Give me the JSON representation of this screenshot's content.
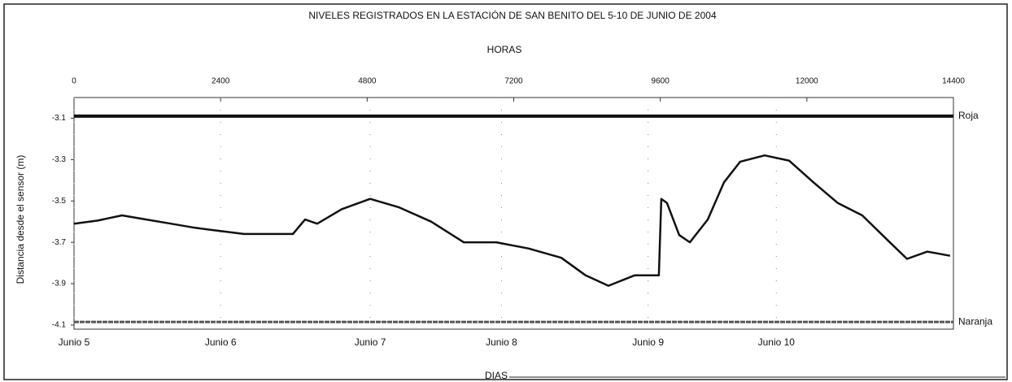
{
  "chart_data": {
    "type": "line",
    "title": "NIVELES REGISTRADOS EN LA ESTACIÓN DE SAN BENITO DEL 5-10 DE JUNIO DE 2004",
    "x_label_top": "HORAS",
    "x_label_bottom": "DIAS",
    "y_label": "Distancia desde el sensor (m)",
    "xlim": [
      0,
      14400
    ],
    "xticks": [
      0,
      2400,
      4800,
      7200,
      9600,
      12000,
      14400
    ],
    "x2ticks": [
      {
        "value": 0,
        "label": "Junio 5"
      },
      {
        "value": 2400,
        "label": "Junio 6"
      },
      {
        "value": 4850,
        "label": "Junio 7"
      },
      {
        "value": 7000,
        "label": "Junio 8"
      },
      {
        "value": 9400,
        "label": "Junio 9"
      },
      {
        "value": 11500,
        "label": "Junio 10"
      }
    ],
    "ylim": [
      -4.12,
      -3.0
    ],
    "yticks": [
      -3.1,
      -3.3,
      -3.5,
      -3.7,
      -3.9,
      -4.1
    ],
    "series": [
      {
        "color": "#111111",
        "x": [
          0,
          386,
          786,
          1186,
          1585,
          1985,
          2384,
          2784,
          3184,
          3583,
          3783,
          3983,
          4383,
          4849,
          5315,
          5848,
          6381,
          6913,
          7446,
          7979,
          8378,
          8751,
          9178,
          9577,
          9617,
          9710,
          9910,
          10084,
          10377,
          10643,
          10909,
          11309,
          11708,
          12108,
          12507,
          12907,
          13307,
          13640,
          13973,
          14346
        ],
        "values": [
          -3.61,
          -3.595,
          -3.57,
          -3.59,
          -3.61,
          -3.63,
          -3.645,
          -3.66,
          -3.66,
          -3.66,
          -3.59,
          -3.61,
          -3.54,
          -3.49,
          -3.53,
          -3.6,
          -3.7,
          -3.7,
          -3.73,
          -3.775,
          -3.86,
          -3.91,
          -3.86,
          -3.86,
          -3.49,
          -3.51,
          -3.665,
          -3.7,
          -3.59,
          -3.41,
          -3.31,
          -3.28,
          -3.305,
          -3.41,
          -3.51,
          -3.57,
          -3.685,
          -3.78,
          -3.745,
          -3.765
        ]
      }
    ],
    "reference_lines": [
      {
        "name": "Roja",
        "value": -3.09,
        "color": "#111111"
      },
      {
        "name": "Naranja",
        "value": -4.085,
        "color": "#555555"
      }
    ]
  }
}
